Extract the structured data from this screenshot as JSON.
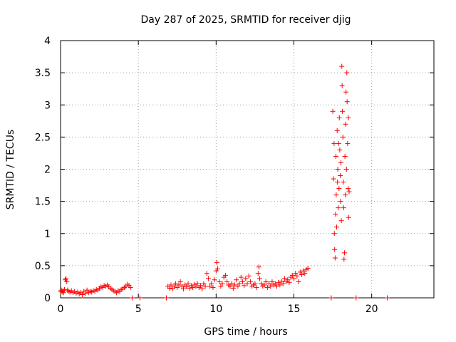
{
  "chart_data": {
    "type": "scatter",
    "title": "Day 287 of 2025, SRMTID for receiver djig",
    "xlabel": "GPS time / hours",
    "ylabel": "SRMTID / TECUs",
    "xlim": [
      0,
      24
    ],
    "ylim": [
      0,
      4
    ],
    "x_ticks": [
      0,
      5,
      10,
      15,
      20
    ],
    "x_tick_labels": [
      "0",
      "5",
      "10",
      "15",
      "20"
    ],
    "y_ticks": [
      0,
      0.5,
      1,
      1.5,
      2,
      2.5,
      3,
      3.5,
      4
    ],
    "y_tick_labels": [
      "0",
      "0.5",
      "1",
      "1.5",
      "2",
      "2.5",
      "3",
      "3.5",
      "4"
    ],
    "grid": true,
    "marker": "+",
    "marker_color": "#ff0000",
    "series": [
      {
        "name": "SRMTID",
        "points": [
          [
            0.0,
            0.1
          ],
          [
            0.05,
            0.12
          ],
          [
            0.1,
            0.09
          ],
          [
            0.15,
            0.11
          ],
          [
            0.2,
            0.08
          ],
          [
            0.25,
            0.13
          ],
          [
            0.3,
            0.28
          ],
          [
            0.35,
            0.3
          ],
          [
            0.4,
            0.25
          ],
          [
            0.45,
            0.12
          ],
          [
            0.5,
            0.1
          ],
          [
            0.6,
            0.09
          ],
          [
            0.7,
            0.11
          ],
          [
            0.8,
            0.08
          ],
          [
            0.9,
            0.1
          ],
          [
            1.0,
            0.07
          ],
          [
            1.1,
            0.09
          ],
          [
            1.2,
            0.06
          ],
          [
            1.3,
            0.08
          ],
          [
            1.4,
            0.05
          ],
          [
            1.5,
            0.1
          ],
          [
            1.6,
            0.07
          ],
          [
            1.7,
            0.12
          ],
          [
            1.8,
            0.08
          ],
          [
            1.9,
            0.1
          ],
          [
            2.0,
            0.09
          ],
          [
            2.1,
            0.11
          ],
          [
            2.2,
            0.1
          ],
          [
            2.3,
            0.13
          ],
          [
            2.4,
            0.12
          ],
          [
            2.5,
            0.15
          ],
          [
            2.6,
            0.17
          ],
          [
            2.7,
            0.16
          ],
          [
            2.8,
            0.19
          ],
          [
            2.9,
            0.18
          ],
          [
            3.0,
            0.2
          ],
          [
            3.1,
            0.17
          ],
          [
            3.2,
            0.15
          ],
          [
            3.3,
            0.13
          ],
          [
            3.4,
            0.11
          ],
          [
            3.5,
            0.1
          ],
          [
            3.6,
            0.08
          ],
          [
            3.7,
            0.11
          ],
          [
            3.8,
            0.1
          ],
          [
            3.9,
            0.13
          ],
          [
            4.0,
            0.14
          ],
          [
            4.1,
            0.16
          ],
          [
            4.2,
            0.18
          ],
          [
            4.3,
            0.21
          ],
          [
            4.4,
            0.19
          ],
          [
            4.5,
            0.16
          ],
          [
            4.6,
            0.0
          ],
          [
            5.1,
            0.0
          ],
          [
            6.8,
            0.0
          ],
          [
            6.9,
            0.18
          ],
          [
            7.0,
            0.15
          ],
          [
            7.1,
            0.2
          ],
          [
            7.2,
            0.14
          ],
          [
            7.3,
            0.18
          ],
          [
            7.4,
            0.22
          ],
          [
            7.5,
            0.16
          ],
          [
            7.6,
            0.2
          ],
          [
            7.7,
            0.25
          ],
          [
            7.8,
            0.18
          ],
          [
            7.9,
            0.14
          ],
          [
            8.0,
            0.2
          ],
          [
            8.1,
            0.17
          ],
          [
            8.2,
            0.22
          ],
          [
            8.3,
            0.15
          ],
          [
            8.4,
            0.19
          ],
          [
            8.5,
            0.16
          ],
          [
            8.6,
            0.21
          ],
          [
            8.7,
            0.18
          ],
          [
            8.8,
            0.22
          ],
          [
            8.9,
            0.16
          ],
          [
            9.0,
            0.19
          ],
          [
            9.1,
            0.14
          ],
          [
            9.2,
            0.22
          ],
          [
            9.3,
            0.18
          ],
          [
            9.4,
            0.38
          ],
          [
            9.5,
            0.3
          ],
          [
            9.6,
            0.18
          ],
          [
            9.7,
            0.22
          ],
          [
            9.8,
            0.16
          ],
          [
            9.9,
            0.28
          ],
          [
            10.0,
            0.42
          ],
          [
            10.05,
            0.55
          ],
          [
            10.1,
            0.45
          ],
          [
            10.2,
            0.25
          ],
          [
            10.3,
            0.18
          ],
          [
            10.4,
            0.22
          ],
          [
            10.5,
            0.32
          ],
          [
            10.6,
            0.35
          ],
          [
            10.7,
            0.25
          ],
          [
            10.8,
            0.2
          ],
          [
            10.9,
            0.18
          ],
          [
            11.0,
            0.22
          ],
          [
            11.1,
            0.15
          ],
          [
            11.2,
            0.2
          ],
          [
            11.3,
            0.28
          ],
          [
            11.4,
            0.18
          ],
          [
            11.5,
            0.22
          ],
          [
            11.6,
            0.32
          ],
          [
            11.7,
            0.25
          ],
          [
            11.8,
            0.19
          ],
          [
            11.9,
            0.3
          ],
          [
            12.0,
            0.22
          ],
          [
            12.1,
            0.34
          ],
          [
            12.2,
            0.25
          ],
          [
            12.3,
            0.18
          ],
          [
            12.4,
            0.2
          ],
          [
            12.5,
            0.22
          ],
          [
            12.6,
            0.16
          ],
          [
            12.7,
            0.38
          ],
          [
            12.75,
            0.48
          ],
          [
            12.8,
            0.3
          ],
          [
            12.9,
            0.22
          ],
          [
            13.0,
            0.18
          ],
          [
            13.1,
            0.2
          ],
          [
            13.2,
            0.25
          ],
          [
            13.3,
            0.16
          ],
          [
            13.4,
            0.22
          ],
          [
            13.5,
            0.18
          ],
          [
            13.6,
            0.25
          ],
          [
            13.7,
            0.2
          ],
          [
            13.8,
            0.22
          ],
          [
            13.9,
            0.18
          ],
          [
            14.0,
            0.24
          ],
          [
            14.1,
            0.2
          ],
          [
            14.2,
            0.26
          ],
          [
            14.3,
            0.22
          ],
          [
            14.4,
            0.3
          ],
          [
            14.5,
            0.25
          ],
          [
            14.6,
            0.28
          ],
          [
            14.7,
            0.24
          ],
          [
            14.8,
            0.32
          ],
          [
            14.9,
            0.35
          ],
          [
            15.0,
            0.3
          ],
          [
            15.1,
            0.38
          ],
          [
            15.2,
            0.34
          ],
          [
            15.3,
            0.25
          ],
          [
            15.4,
            0.4
          ],
          [
            15.5,
            0.36
          ],
          [
            15.6,
            0.42
          ],
          [
            15.7,
            0.38
          ],
          [
            15.8,
            0.44
          ],
          [
            15.9,
            0.46
          ],
          [
            17.4,
            0.0
          ],
          [
            17.5,
            2.9
          ],
          [
            17.55,
            1.85
          ],
          [
            17.58,
            2.4
          ],
          [
            17.6,
            1.0
          ],
          [
            17.62,
            0.75
          ],
          [
            17.65,
            0.62
          ],
          [
            17.68,
            1.3
          ],
          [
            17.7,
            2.2
          ],
          [
            17.72,
            1.6
          ],
          [
            17.75,
            1.1
          ],
          [
            17.78,
            2.6
          ],
          [
            17.8,
            1.8
          ],
          [
            17.82,
            2.0
          ],
          [
            17.85,
            1.4
          ],
          [
            17.88,
            2.4
          ],
          [
            17.9,
            1.7
          ],
          [
            17.92,
            2.8
          ],
          [
            17.95,
            2.3
          ],
          [
            17.98,
            1.9
          ],
          [
            18.0,
            1.5
          ],
          [
            18.02,
            2.1
          ],
          [
            18.05,
            1.2
          ],
          [
            18.08,
            3.6
          ],
          [
            18.1,
            3.3
          ],
          [
            18.12,
            2.9
          ],
          [
            18.15,
            2.5
          ],
          [
            18.18,
            1.8
          ],
          [
            18.2,
            1.4
          ],
          [
            18.22,
            0.6
          ],
          [
            18.25,
            0.7
          ],
          [
            18.28,
            2.2
          ],
          [
            18.3,
            1.6
          ],
          [
            18.32,
            2.7
          ],
          [
            18.35,
            3.2
          ],
          [
            18.38,
            2.0
          ],
          [
            18.4,
            3.5
          ],
          [
            18.42,
            3.05
          ],
          [
            18.45,
            2.4
          ],
          [
            18.48,
            1.7
          ],
          [
            18.5,
            2.8
          ],
          [
            18.52,
            1.25
          ],
          [
            18.55,
            1.65
          ],
          [
            19.0,
            0.0
          ],
          [
            21.0,
            0.0
          ]
        ]
      }
    ]
  }
}
